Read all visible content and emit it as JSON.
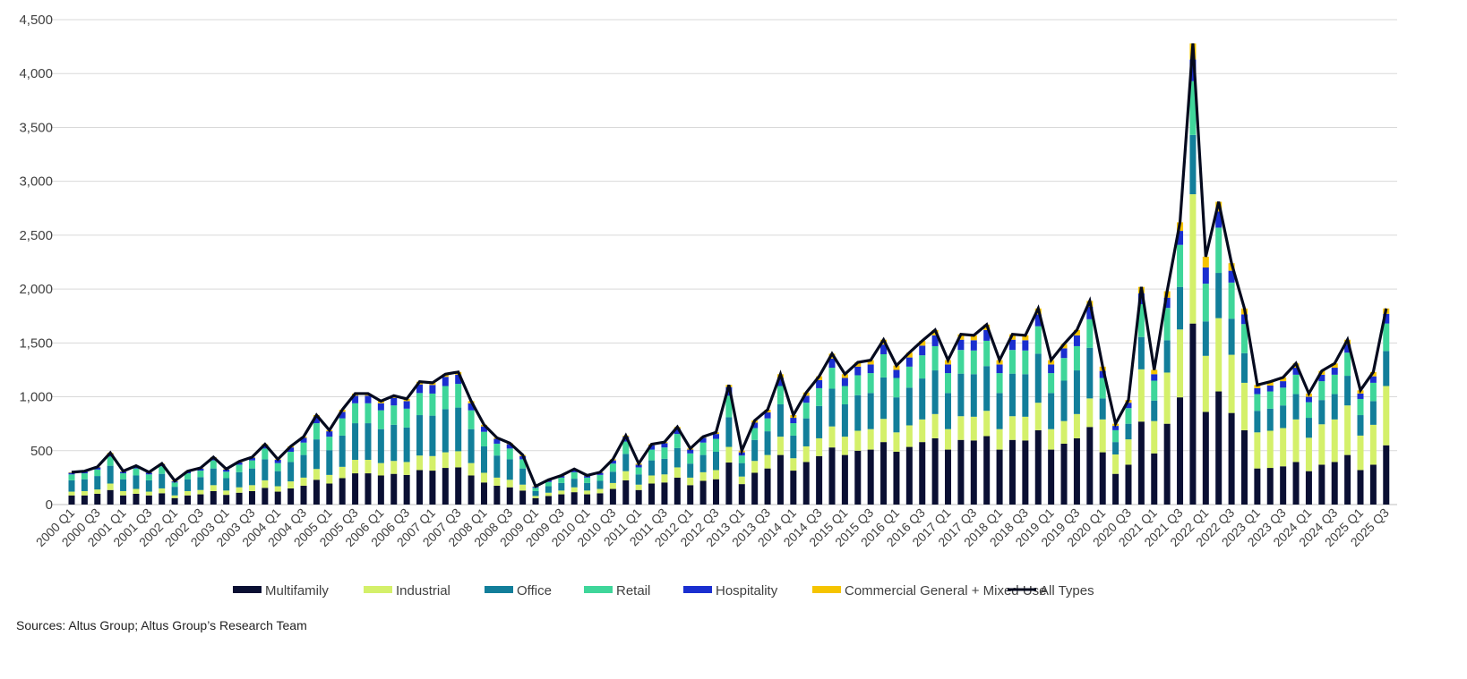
{
  "chart_data": {
    "type": "bar",
    "stacked": true,
    "ylim": [
      0,
      4500
    ],
    "yticks": [
      0,
      500,
      1000,
      1500,
      2000,
      2500,
      3000,
      3500,
      4000,
      4500
    ],
    "grid": true,
    "legend_position": "bottom",
    "start_year": 2000,
    "categories": [
      "2000 Q1",
      "2000 Q2",
      "2000 Q3",
      "2000 Q4",
      "2001 Q1",
      "2001 Q2",
      "2001 Q3",
      "2001 Q4",
      "2002 Q1",
      "2002 Q2",
      "2002 Q3",
      "2002 Q4",
      "2003 Q1",
      "2003 Q2",
      "2003 Q3",
      "2003 Q4",
      "2004 Q1",
      "2004 Q2",
      "2004 Q3",
      "2004 Q4",
      "2005 Q1",
      "2005 Q2",
      "2005 Q3",
      "2005 Q4",
      "2006 Q1",
      "2006 Q2",
      "2006 Q3",
      "2006 Q4",
      "2007 Q1",
      "2007 Q2",
      "2007 Q3",
      "2007 Q4",
      "2008 Q1",
      "2008 Q2",
      "2008 Q3",
      "2008 Q4",
      "2009 Q1",
      "2009 Q2",
      "2009 Q3",
      "2009 Q4",
      "2010 Q1",
      "2010 Q2",
      "2010 Q3",
      "2010 Q4",
      "2011 Q1",
      "2011 Q2",
      "2011 Q3",
      "2011 Q4",
      "2012 Q1",
      "2012 Q2",
      "2012 Q3",
      "2012 Q4",
      "2013 Q1",
      "2013 Q2",
      "2013 Q3",
      "2013 Q4",
      "2014 Q1",
      "2014 Q2",
      "2014 Q3",
      "2014 Q4",
      "2015 Q1",
      "2015 Q2",
      "2015 Q3",
      "2015 Q4",
      "2016 Q1",
      "2016 Q2",
      "2016 Q3",
      "2016 Q4",
      "2017 Q1",
      "2017 Q2",
      "2017 Q3",
      "2017 Q4",
      "2018 Q1",
      "2018 Q2",
      "2018 Q3",
      "2018 Q4",
      "2019 Q1",
      "2019 Q2",
      "2019 Q3",
      "2019 Q4",
      "2020 Q1",
      "2020 Q2",
      "2020 Q3",
      "2020 Q4",
      "2021 Q1",
      "2021 Q2",
      "2021 Q3",
      "2021 Q4",
      "2022 Q1",
      "2022 Q2",
      "2022 Q3",
      "2022 Q4",
      "2023 Q1",
      "2023 Q2",
      "2023 Q3",
      "2023 Q4",
      "2024 Q1",
      "2024 Q2",
      "2024 Q3",
      "2024 Q4",
      "2025 Q1",
      "2025 Q2",
      "2025 Q3"
    ],
    "series": [
      {
        "name": "Multifamily",
        "color": "#0a0f33",
        "values": [
          85,
          85,
          100,
          135,
          85,
          100,
          85,
          105,
          60,
          85,
          95,
          125,
          90,
          110,
          125,
          155,
          120,
          150,
          175,
          230,
          195,
          245,
          290,
          290,
          270,
          285,
          275,
          320,
          315,
          340,
          345,
          270,
          205,
          175,
          160,
          130,
          60,
          80,
          95,
          115,
          95,
          105,
          145,
          225,
          135,
          195,
          205,
          250,
          180,
          220,
          235,
          390,
          190,
          295,
          335,
          460,
          315,
          395,
          450,
          530,
          460,
          500,
          510,
          580,
          490,
          535,
          580,
          615,
          510,
          600,
          595,
          635,
          510,
          600,
          595,
          690,
          510,
          565,
          615,
          720,
          485,
          285,
          370,
          770,
          475,
          750,
          995,
          1680,
          860,
          1050,
          850,
          690,
          335,
          340,
          355,
          395,
          310,
          370,
          395,
          460,
          320,
          370,
          550
        ]
      },
      {
        "name": "Industrial",
        "color": "#d4f06a",
        "values": [
          35,
          40,
          40,
          60,
          40,
          45,
          35,
          45,
          25,
          40,
          40,
          55,
          40,
          50,
          55,
          70,
          50,
          65,
          75,
          100,
          80,
          105,
          125,
          125,
          115,
          120,
          120,
          135,
          135,
          145,
          150,
          115,
          90,
          75,
          70,
          55,
          20,
          30,
          35,
          45,
          35,
          40,
          55,
          85,
          50,
          75,
          75,
          95,
          70,
          80,
          85,
          145,
          70,
          110,
          125,
          170,
          115,
          145,
          165,
          195,
          170,
          185,
          190,
          215,
          180,
          200,
          210,
          225,
          190,
          220,
          220,
          235,
          190,
          220,
          220,
          255,
          190,
          210,
          225,
          265,
          305,
          180,
          235,
          485,
          300,
          475,
          630,
          1200,
          520,
          680,
          540,
          440,
          335,
          345,
          355,
          395,
          310,
          375,
          395,
          460,
          320,
          370,
          550
        ]
      },
      {
        "name": "Office",
        "color": "#127e9a",
        "values": [
          105,
          110,
          125,
          165,
          110,
          125,
          105,
          135,
          80,
          110,
          120,
          155,
          115,
          140,
          155,
          195,
          140,
          180,
          210,
          275,
          230,
          290,
          340,
          340,
          315,
          335,
          320,
          375,
          375,
          400,
          405,
          315,
          245,
          205,
          190,
          150,
          45,
          60,
          70,
          80,
          70,
          75,
          105,
          160,
          95,
          140,
          145,
          180,
          130,
          160,
          170,
          275,
          125,
          195,
          220,
          300,
          210,
          260,
          300,
          350,
          300,
          330,
          335,
          385,
          325,
          350,
          380,
          405,
          335,
          395,
          395,
          415,
          335,
          395,
          395,
          455,
          335,
          375,
          405,
          470,
          195,
          115,
          145,
          300,
          190,
          300,
          395,
          550,
          320,
          420,
          335,
          275,
          200,
          205,
          210,
          235,
          185,
          225,
          235,
          275,
          190,
          220,
          325
        ]
      },
      {
        "name": "Retail",
        "color": "#3fd69a",
        "values": [
          55,
          55,
          60,
          85,
          55,
          65,
          55,
          70,
          40,
          55,
          60,
          75,
          60,
          70,
          75,
          100,
          75,
          95,
          115,
          150,
          125,
          160,
          185,
          185,
          175,
          180,
          175,
          205,
          205,
          215,
          220,
          175,
          135,
          110,
          100,
          85,
          30,
          40,
          50,
          60,
          50,
          55,
          75,
          115,
          65,
          100,
          105,
          130,
          95,
          115,
          120,
          200,
          70,
          110,
          120,
          170,
          115,
          145,
          165,
          195,
          170,
          185,
          185,
          215,
          180,
          195,
          215,
          225,
          185,
          220,
          220,
          235,
          185,
          220,
          220,
          255,
          185,
          210,
          225,
          265,
          190,
          110,
          145,
          305,
          185,
          300,
          390,
          500,
          350,
          420,
          335,
          270,
          155,
          160,
          165,
          180,
          145,
          175,
          180,
          215,
          150,
          170,
          255
        ]
      },
      {
        "name": "Hospitality",
        "color": "#1a2fd0",
        "values": [
          15,
          15,
          20,
          25,
          15,
          20,
          15,
          20,
          10,
          15,
          20,
          25,
          20,
          20,
          25,
          30,
          30,
          40,
          45,
          60,
          50,
          60,
          70,
          70,
          65,
          70,
          70,
          80,
          80,
          85,
          85,
          65,
          50,
          45,
          40,
          30,
          10,
          15,
          15,
          25,
          15,
          20,
          30,
          45,
          25,
          40,
          40,
          50,
          35,
          45,
          45,
          80,
          30,
          50,
          55,
          75,
          50,
          65,
          75,
          85,
          75,
          80,
          80,
          90,
          75,
          85,
          90,
          100,
          80,
          95,
          95,
          100,
          80,
          95,
          95,
          110,
          80,
          90,
          100,
          115,
          65,
          40,
          50,
          100,
          60,
          95,
          130,
          200,
          150,
          150,
          110,
          90,
          55,
          55,
          60,
          65,
          50,
          60,
          65,
          75,
          50,
          60,
          90
        ]
      },
      {
        "name": "Commercial General + Mixed Use",
        "color": "#f5c400",
        "values": [
          5,
          5,
          5,
          10,
          5,
          5,
          5,
          5,
          5,
          5,
          5,
          5,
          5,
          10,
          5,
          10,
          5,
          10,
          10,
          15,
          10,
          20,
          20,
          20,
          20,
          20,
          20,
          25,
          20,
          25,
          25,
          20,
          15,
          10,
          10,
          10,
          5,
          5,
          5,
          5,
          5,
          5,
          10,
          10,
          10,
          10,
          10,
          15,
          10,
          10,
          15,
          20,
          15,
          20,
          25,
          35,
          25,
          30,
          35,
          45,
          35,
          40,
          40,
          45,
          40,
          45,
          45,
          50,
          40,
          50,
          45,
          50,
          40,
          50,
          45,
          55,
          40,
          40,
          50,
          55,
          40,
          20,
          25,
          60,
          40,
          60,
          80,
          150,
          100,
          90,
          70,
          55,
          30,
          35,
          35,
          40,
          30,
          35,
          40,
          45,
          30,
          40,
          50
        ]
      }
    ],
    "line": {
      "name": "All Types",
      "color": "#050a1e",
      "values": [
        300,
        310,
        350,
        480,
        310,
        360,
        300,
        380,
        220,
        310,
        340,
        440,
        330,
        400,
        440,
        560,
        420,
        540,
        630,
        830,
        690,
        880,
        1030,
        1030,
        960,
        1010,
        980,
        1140,
        1130,
        1210,
        1230,
        960,
        740,
        620,
        570,
        460,
        170,
        230,
        270,
        330,
        270,
        300,
        420,
        640,
        380,
        560,
        580,
        720,
        520,
        630,
        670,
        1110,
        500,
        780,
        880,
        1210,
        830,
        1040,
        1190,
        1400,
        1210,
        1320,
        1340,
        1530,
        1290,
        1410,
        1520,
        1620,
        1340,
        1580,
        1570,
        1670,
        1340,
        1580,
        1570,
        1820,
        1340,
        1490,
        1620,
        1890,
        1280,
        750,
        970,
        2020,
        1250,
        1980,
        2620,
        4280,
        2300,
        2810,
        2240,
        1820,
        1110,
        1140,
        1180,
        1310,
        1030,
        1240,
        1310,
        1530,
        1060,
        1230,
        1820
      ]
    },
    "ytick_labels": [
      "0",
      "500",
      "1,000",
      "1,500",
      "2,000",
      "2,500",
      "3,000",
      "3,500",
      "4,000",
      "4,500"
    ]
  },
  "legend": [
    "Multifamily",
    "Industrial",
    "Office",
    "Retail",
    "Hospitality",
    "Commercial General + Mixed Use",
    "All Types"
  ],
  "source": "Sources: Altus Group; Altus Group’s Research Team"
}
